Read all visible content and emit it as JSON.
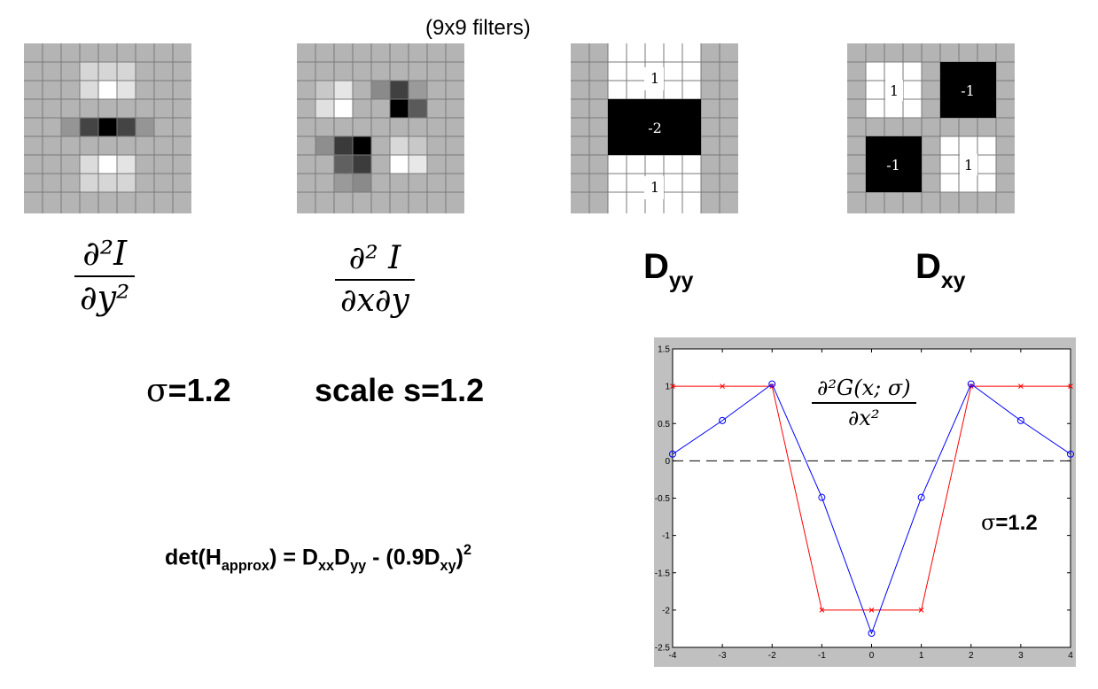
{
  "caption": "(9x9 filters)",
  "filters": {
    "dyy_labels": {
      "top": "1",
      "middle": "-2",
      "bottom": "1"
    },
    "dxy_labels": {
      "tl": "1",
      "tr": "-1",
      "bl": "-1",
      "br": "1"
    }
  },
  "math": {
    "frac1": {
      "num": "∂²I",
      "den": "∂y²"
    },
    "frac2": {
      "num": "∂² I",
      "den": "∂x∂y"
    },
    "dyy": {
      "base": "D",
      "sub": "yy"
    },
    "dxy": {
      "base": "D",
      "sub": "xy"
    }
  },
  "params": {
    "sigma_symbol": "σ",
    "sigma_value": "=1.2",
    "scale_text": "scale s=1.2"
  },
  "formula": {
    "p1": "det(H",
    "s1": "approx",
    "p2": ") = D",
    "s2": "xx",
    "p3": "D",
    "s3": "yy",
    "p4": " - (0.9D",
    "s4": "xy",
    "p5": ")",
    "sup": "2"
  },
  "plot": {
    "annotation": {
      "num": "∂²G(x; σ)",
      "den": "∂x²"
    },
    "sigma_symbol": "σ",
    "sigma_value": "=1.2"
  },
  "chart_data": {
    "type": "line",
    "title": "",
    "xlabel": "",
    "ylabel": "",
    "xlim": [
      -4,
      4
    ],
    "ylim": [
      -2.5,
      1.5
    ],
    "xticks": [
      -4,
      -3,
      -2,
      -1,
      0,
      1,
      2,
      3,
      4
    ],
    "yticks": [
      -2.5,
      -2,
      -1.5,
      -1,
      -0.5,
      0,
      0.5,
      1,
      1.5
    ],
    "grid": false,
    "x": [
      -4,
      -3,
      -2,
      -1,
      0,
      1,
      2,
      3,
      4
    ],
    "series": [
      {
        "values": [
          1,
          1,
          1,
          -2,
          -2,
          -2,
          1,
          1,
          1
        ],
        "color": "#ff0000",
        "marker": "x"
      },
      {
        "values": [
          0.09,
          0.54,
          1.03,
          -0.49,
          -2.31,
          -0.49,
          1.03,
          0.54,
          0.09
        ],
        "color": "#0000ff",
        "marker": "o"
      }
    ],
    "reference_line": {
      "y": 0,
      "style": "dashed",
      "color": "#000000"
    }
  }
}
